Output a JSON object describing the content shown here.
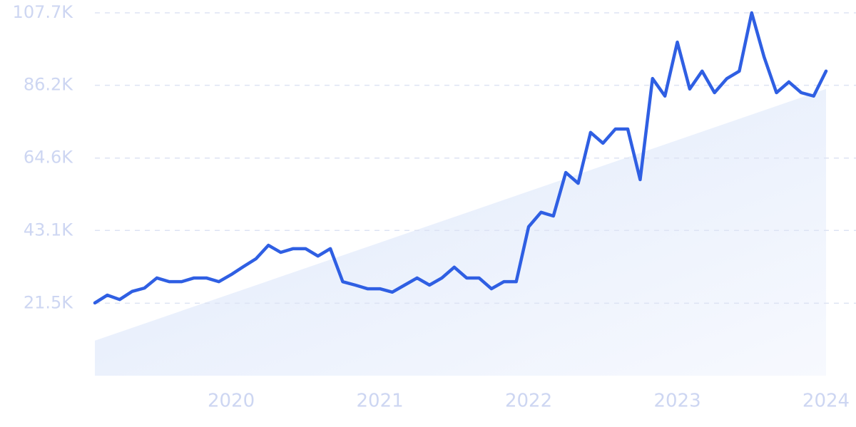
{
  "chart_data": {
    "type": "line",
    "categories": [
      null,
      null,
      null,
      null,
      null,
      null,
      null,
      null,
      null,
      null,
      null,
      "2020",
      null,
      null,
      null,
      null,
      null,
      null,
      null,
      null,
      null,
      null,
      null,
      "2021",
      null,
      null,
      null,
      null,
      null,
      null,
      null,
      null,
      null,
      null,
      null,
      "2022",
      null,
      null,
      null,
      null,
      null,
      null,
      null,
      null,
      null,
      null,
      null,
      "2023",
      null,
      null,
      null,
      null,
      null,
      null,
      null,
      null,
      null,
      null,
      null,
      "2024"
    ],
    "series": [
      {
        "color": "#2f5fe3",
        "values": [
          21600,
          23900,
          22600,
          25000,
          26000,
          29000,
          27900,
          27900,
          29000,
          29000,
          27900,
          30000,
          32400,
          34700,
          38700,
          36600,
          37700,
          37700,
          35500,
          37700,
          27900,
          26900,
          25800,
          25800,
          24800,
          26900,
          29000,
          26900,
          29000,
          32200,
          29000,
          29000,
          25800,
          27900,
          27900,
          44200,
          48500,
          47400,
          60300,
          57100,
          72200,
          69000,
          73200,
          73200,
          58200,
          88200,
          83000,
          99000,
          85100,
          90400,
          84000,
          88200,
          90400,
          107700,
          94600,
          84000,
          87200,
          84000,
          83000,
          90400
        ]
      }
    ],
    "trend": [
      10400,
      85100
    ],
    "ylim": [
      0,
      107700
    ],
    "yticks": [
      {
        "value": 21500,
        "label": "21.5K"
      },
      {
        "value": 43100,
        "label": "43.1K"
      },
      {
        "value": 64600,
        "label": "64.6K"
      },
      {
        "value": 86200,
        "label": "86.2K"
      },
      {
        "value": 107700,
        "label": "107.7K"
      }
    ],
    "grid": true
  }
}
